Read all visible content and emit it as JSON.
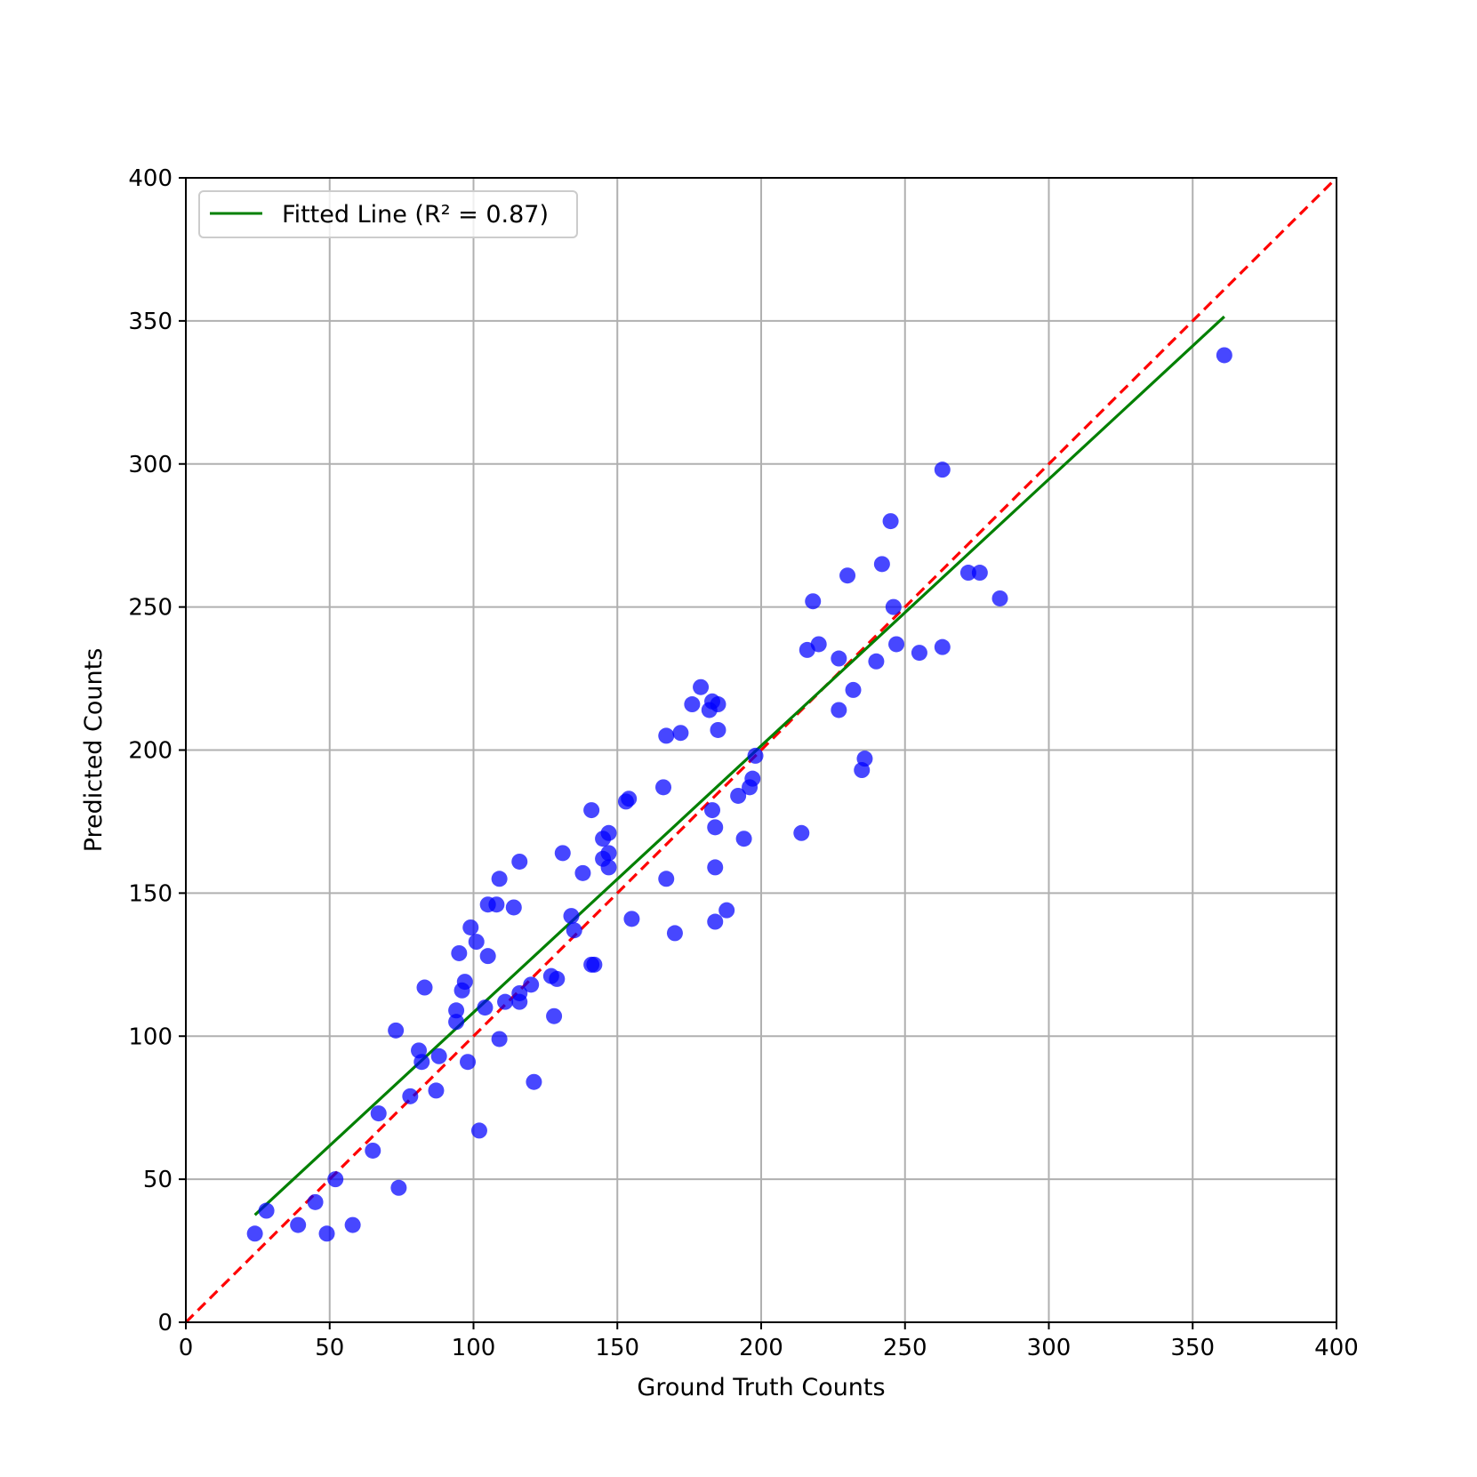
{
  "chart_data": {
    "type": "scatter",
    "title": "",
    "xlabel": "Ground Truth Counts",
    "ylabel": "Predicted Counts",
    "xlim": [
      0,
      400
    ],
    "ylim": [
      0,
      400
    ],
    "xticks": [
      0,
      50,
      100,
      150,
      200,
      250,
      300,
      350,
      400
    ],
    "yticks": [
      0,
      50,
      100,
      150,
      200,
      250,
      300,
      350,
      400
    ],
    "grid": true,
    "legend_position": "top-left",
    "legend": [
      {
        "label": "Fitted Line (R² = 0.87)",
        "color": "#008000",
        "style": "solid"
      }
    ],
    "points_color": "#0000ff",
    "points": [
      [
        24,
        31
      ],
      [
        28,
        39
      ],
      [
        39,
        34
      ],
      [
        45,
        42
      ],
      [
        49,
        31
      ],
      [
        52,
        50
      ],
      [
        58,
        34
      ],
      [
        65,
        60
      ],
      [
        67,
        73
      ],
      [
        73,
        102
      ],
      [
        74,
        47
      ],
      [
        78,
        79
      ],
      [
        81,
        95
      ],
      [
        82,
        91
      ],
      [
        83,
        117
      ],
      [
        87,
        81
      ],
      [
        88,
        93
      ],
      [
        94,
        105
      ],
      [
        94,
        109
      ],
      [
        95,
        129
      ],
      [
        96,
        116
      ],
      [
        97,
        119
      ],
      [
        98,
        91
      ],
      [
        99,
        138
      ],
      [
        101,
        133
      ],
      [
        102,
        67
      ],
      [
        104,
        110
      ],
      [
        105,
        128
      ],
      [
        105,
        146
      ],
      [
        108,
        146
      ],
      [
        109,
        155
      ],
      [
        109,
        99
      ],
      [
        111,
        112
      ],
      [
        114,
        145
      ],
      [
        116,
        161
      ],
      [
        116,
        112
      ],
      [
        116,
        115
      ],
      [
        120,
        118
      ],
      [
        121,
        84
      ],
      [
        127,
        121
      ],
      [
        128,
        107
      ],
      [
        129,
        120
      ],
      [
        131,
        164
      ],
      [
        134,
        142
      ],
      [
        135,
        137
      ],
      [
        138,
        157
      ],
      [
        141,
        179
      ],
      [
        141,
        125
      ],
      [
        142,
        125
      ],
      [
        145,
        169
      ],
      [
        145,
        162
      ],
      [
        147,
        171
      ],
      [
        147,
        164
      ],
      [
        147,
        159
      ],
      [
        153,
        182
      ],
      [
        154,
        183
      ],
      [
        155,
        141
      ],
      [
        166,
        187
      ],
      [
        167,
        205
      ],
      [
        167,
        155
      ],
      [
        170,
        136
      ],
      [
        172,
        206
      ],
      [
        176,
        216
      ],
      [
        179,
        222
      ],
      [
        182,
        214
      ],
      [
        183,
        217
      ],
      [
        183,
        179
      ],
      [
        184,
        173
      ],
      [
        184,
        159
      ],
      [
        184,
        140
      ],
      [
        185,
        207
      ],
      [
        185,
        216
      ],
      [
        188,
        144
      ],
      [
        192,
        184
      ],
      [
        194,
        169
      ],
      [
        196,
        187
      ],
      [
        197,
        190
      ],
      [
        198,
        198
      ],
      [
        214,
        171
      ],
      [
        216,
        235
      ],
      [
        218,
        252
      ],
      [
        220,
        237
      ],
      [
        227,
        232
      ],
      [
        227,
        214
      ],
      [
        230,
        261
      ],
      [
        232,
        221
      ],
      [
        235,
        193
      ],
      [
        236,
        197
      ],
      [
        240,
        231
      ],
      [
        242,
        265
      ],
      [
        245,
        280
      ],
      [
        246,
        250
      ],
      [
        247,
        237
      ],
      [
        255,
        234
      ],
      [
        263,
        298
      ],
      [
        263,
        236
      ],
      [
        272,
        262
      ],
      [
        276,
        262
      ],
      [
        283,
        253
      ],
      [
        361,
        338
      ]
    ],
    "fitted_line": {
      "x": [
        24,
        361
      ],
      "y": [
        37.5,
        351.5
      ]
    },
    "reference_line": {
      "x": [
        0,
        400
      ],
      "y": [
        0,
        400
      ],
      "color": "#ff0000",
      "style": "dashed"
    }
  }
}
